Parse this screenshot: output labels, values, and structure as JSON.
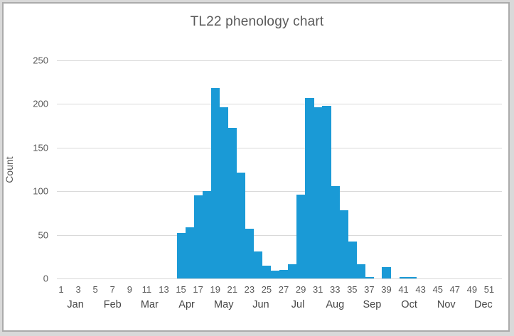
{
  "chart_data": {
    "type": "bar",
    "title": "TL22 phenology chart",
    "ylabel": "Count",
    "xlabel": "",
    "categories": [
      1,
      2,
      3,
      4,
      5,
      6,
      7,
      8,
      9,
      10,
      11,
      12,
      13,
      14,
      15,
      16,
      17,
      18,
      19,
      20,
      21,
      22,
      23,
      24,
      25,
      26,
      27,
      28,
      29,
      30,
      31,
      32,
      33,
      34,
      35,
      36,
      37,
      38,
      39,
      40,
      41,
      42,
      43,
      44,
      45,
      46,
      47,
      48,
      49,
      50,
      51,
      52
    ],
    "values": [
      0,
      0,
      0,
      0,
      0,
      0,
      0,
      0,
      0,
      0,
      0,
      0,
      0,
      0,
      52,
      59,
      95,
      100,
      218,
      196,
      173,
      121,
      57,
      31,
      15,
      9,
      10,
      16,
      96,
      207,
      196,
      198,
      106,
      78,
      42,
      16,
      2,
      0,
      13,
      0,
      2,
      2,
      0,
      0,
      0,
      0,
      0,
      0,
      0,
      0,
      0,
      0
    ],
    "x_tick_labels": [
      "1",
      "3",
      "5",
      "7",
      "9",
      "11",
      "13",
      "15",
      "17",
      "19",
      "21",
      "23",
      "25",
      "27",
      "29",
      "31",
      "33",
      "35",
      "37",
      "39",
      "41",
      "43",
      "45",
      "47",
      "49",
      "51"
    ],
    "month_labels": [
      "Jan",
      "Feb",
      "Mar",
      "Apr",
      "May",
      "Jun",
      "Jul",
      "Aug",
      "Sep",
      "Oct",
      "Nov",
      "Dec"
    ],
    "ylim": [
      0,
      250
    ],
    "yticks": [
      0,
      50,
      100,
      150,
      200,
      250
    ],
    "grid": "horizontal",
    "legend": "none",
    "bar_color": "#1a9ad6",
    "text_color": "#595959",
    "gridline_color": "#d9d9d9",
    "frame_border_color": "#ababab",
    "background_color": "#ffffff"
  }
}
